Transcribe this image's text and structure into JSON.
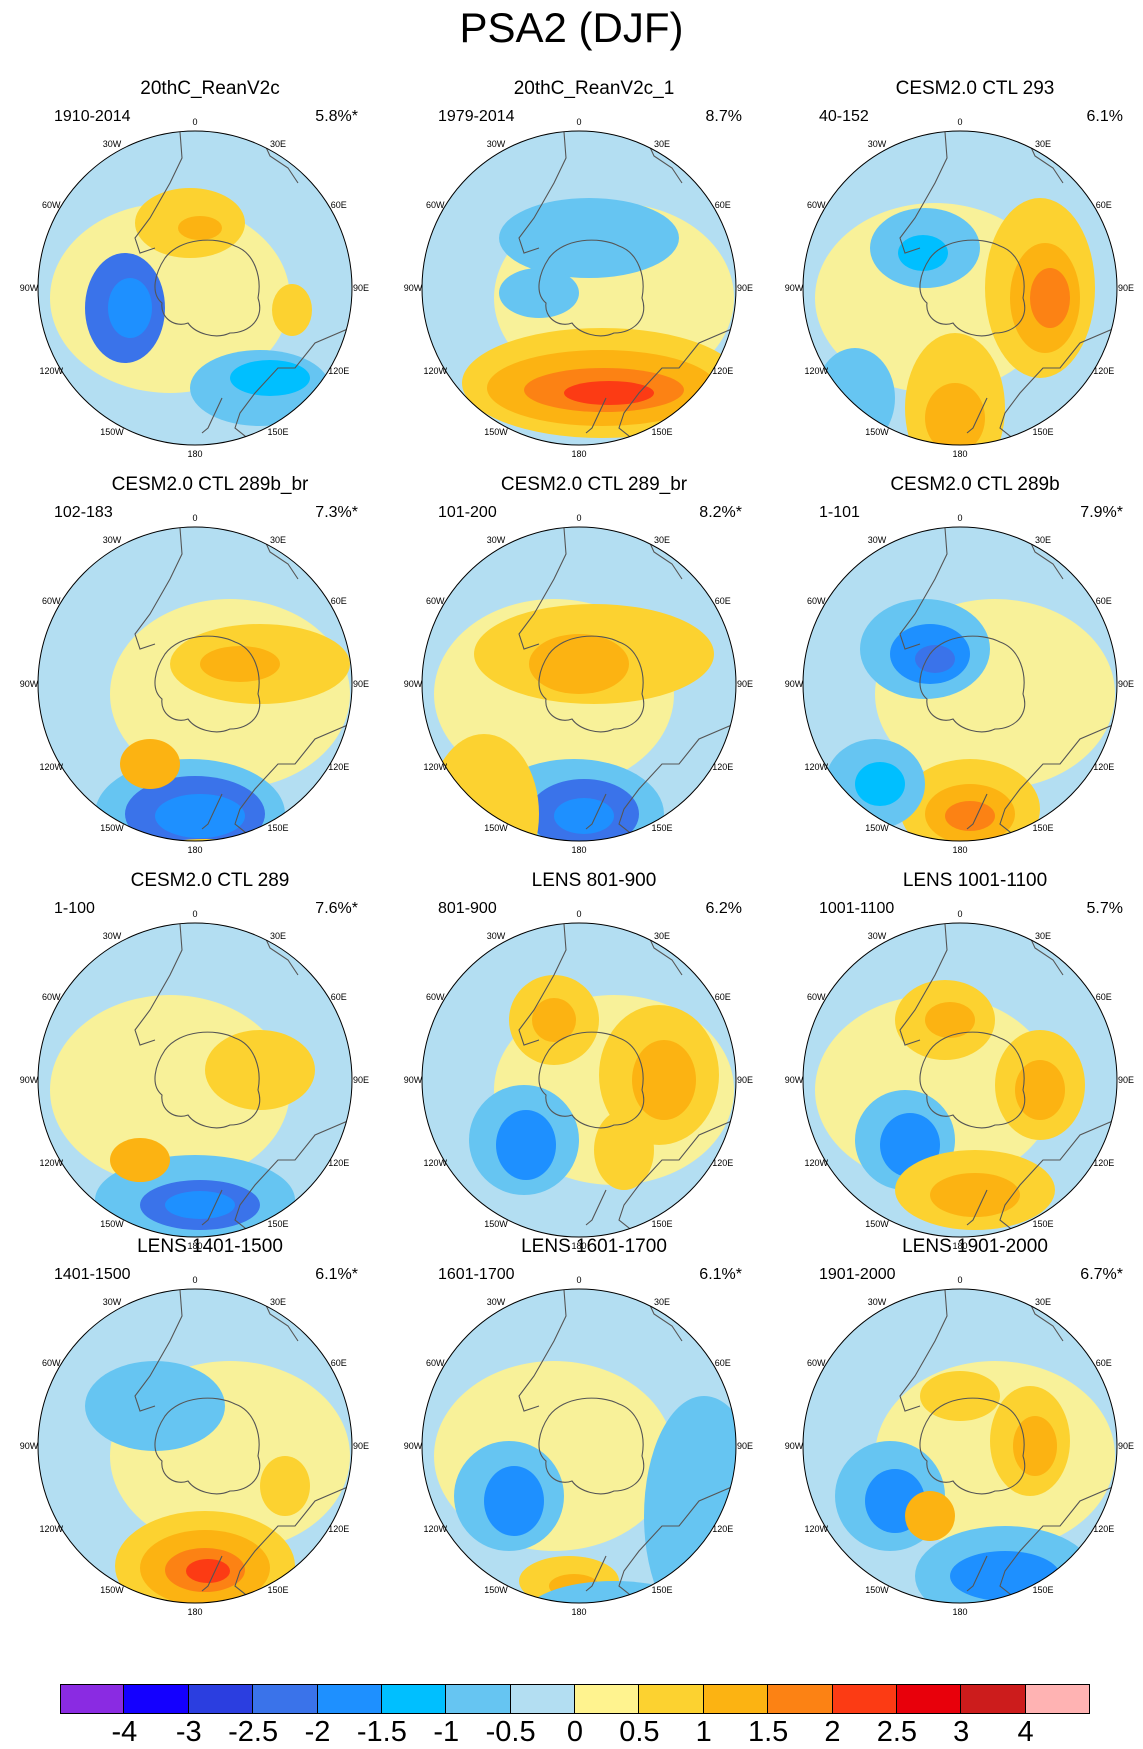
{
  "title": "PSA2 (DJF)",
  "lon_labels": {
    "0": "0",
    "30E": "30E",
    "60E": "60E",
    "90E": "90E",
    "120E": "120E",
    "150E": "150E",
    "180": "180",
    "150W": "150W",
    "120W": "120W",
    "90W": "90W",
    "60W": "60W",
    "30W": "30W"
  },
  "colorbar": {
    "colors": [
      "#8a2be2",
      "#1400ff",
      "#2b3ee0",
      "#3a73ea",
      "#1e90ff",
      "#00bfff",
      "#66c5f2",
      "#b3def2",
      "#fff38f",
      "#fcd230",
      "#fcb312",
      "#fc8214",
      "#fc3b14",
      "#e8000b",
      "#cc1c1c",
      "#ffb3b3"
    ],
    "labels": [
      "-4",
      "-3",
      "-2.5",
      "-2",
      "-1.5",
      "-1",
      "-0.5",
      "0",
      "0.5",
      "1",
      "1.5",
      "2",
      "2.5",
      "3",
      "4"
    ]
  },
  "panels": [
    {
      "title": "20thC_ReanV2c",
      "period": "1910-2014",
      "variance": "5.8%*"
    },
    {
      "title": "20thC_ReanV2c_1",
      "period": "1979-2014",
      "variance": "8.7%"
    },
    {
      "title": "CESM2.0 CTL 293",
      "period": "40-152",
      "variance": "6.1%"
    },
    {
      "title": "CESM2.0 CTL 289b_br",
      "period": "102-183",
      "variance": "7.3%*"
    },
    {
      "title": "CESM2.0 CTL 289_br",
      "period": "101-200",
      "variance": "8.2%*"
    },
    {
      "title": "CESM2.0 CTL 289b",
      "period": "1-101",
      "variance": "7.9%*"
    },
    {
      "title": "CESM2.0 CTL 289",
      "period": "1-100",
      "variance": "7.6%*"
    },
    {
      "title": "LENS 801-900",
      "period": "801-900",
      "variance": "6.2%"
    },
    {
      "title": "LENS 1001-1100",
      "period": "1001-1100",
      "variance": "5.7%"
    },
    {
      "title": "LENS 1401-1500",
      "period": "1401-1500",
      "variance": "6.1%*"
    },
    {
      "title": "LENS 1601-1700",
      "period": "1601-1700",
      "variance": "6.1%*"
    },
    {
      "title": "LENS 1901-2000",
      "period": "1901-2000",
      "variance": "6.7%*"
    }
  ]
}
